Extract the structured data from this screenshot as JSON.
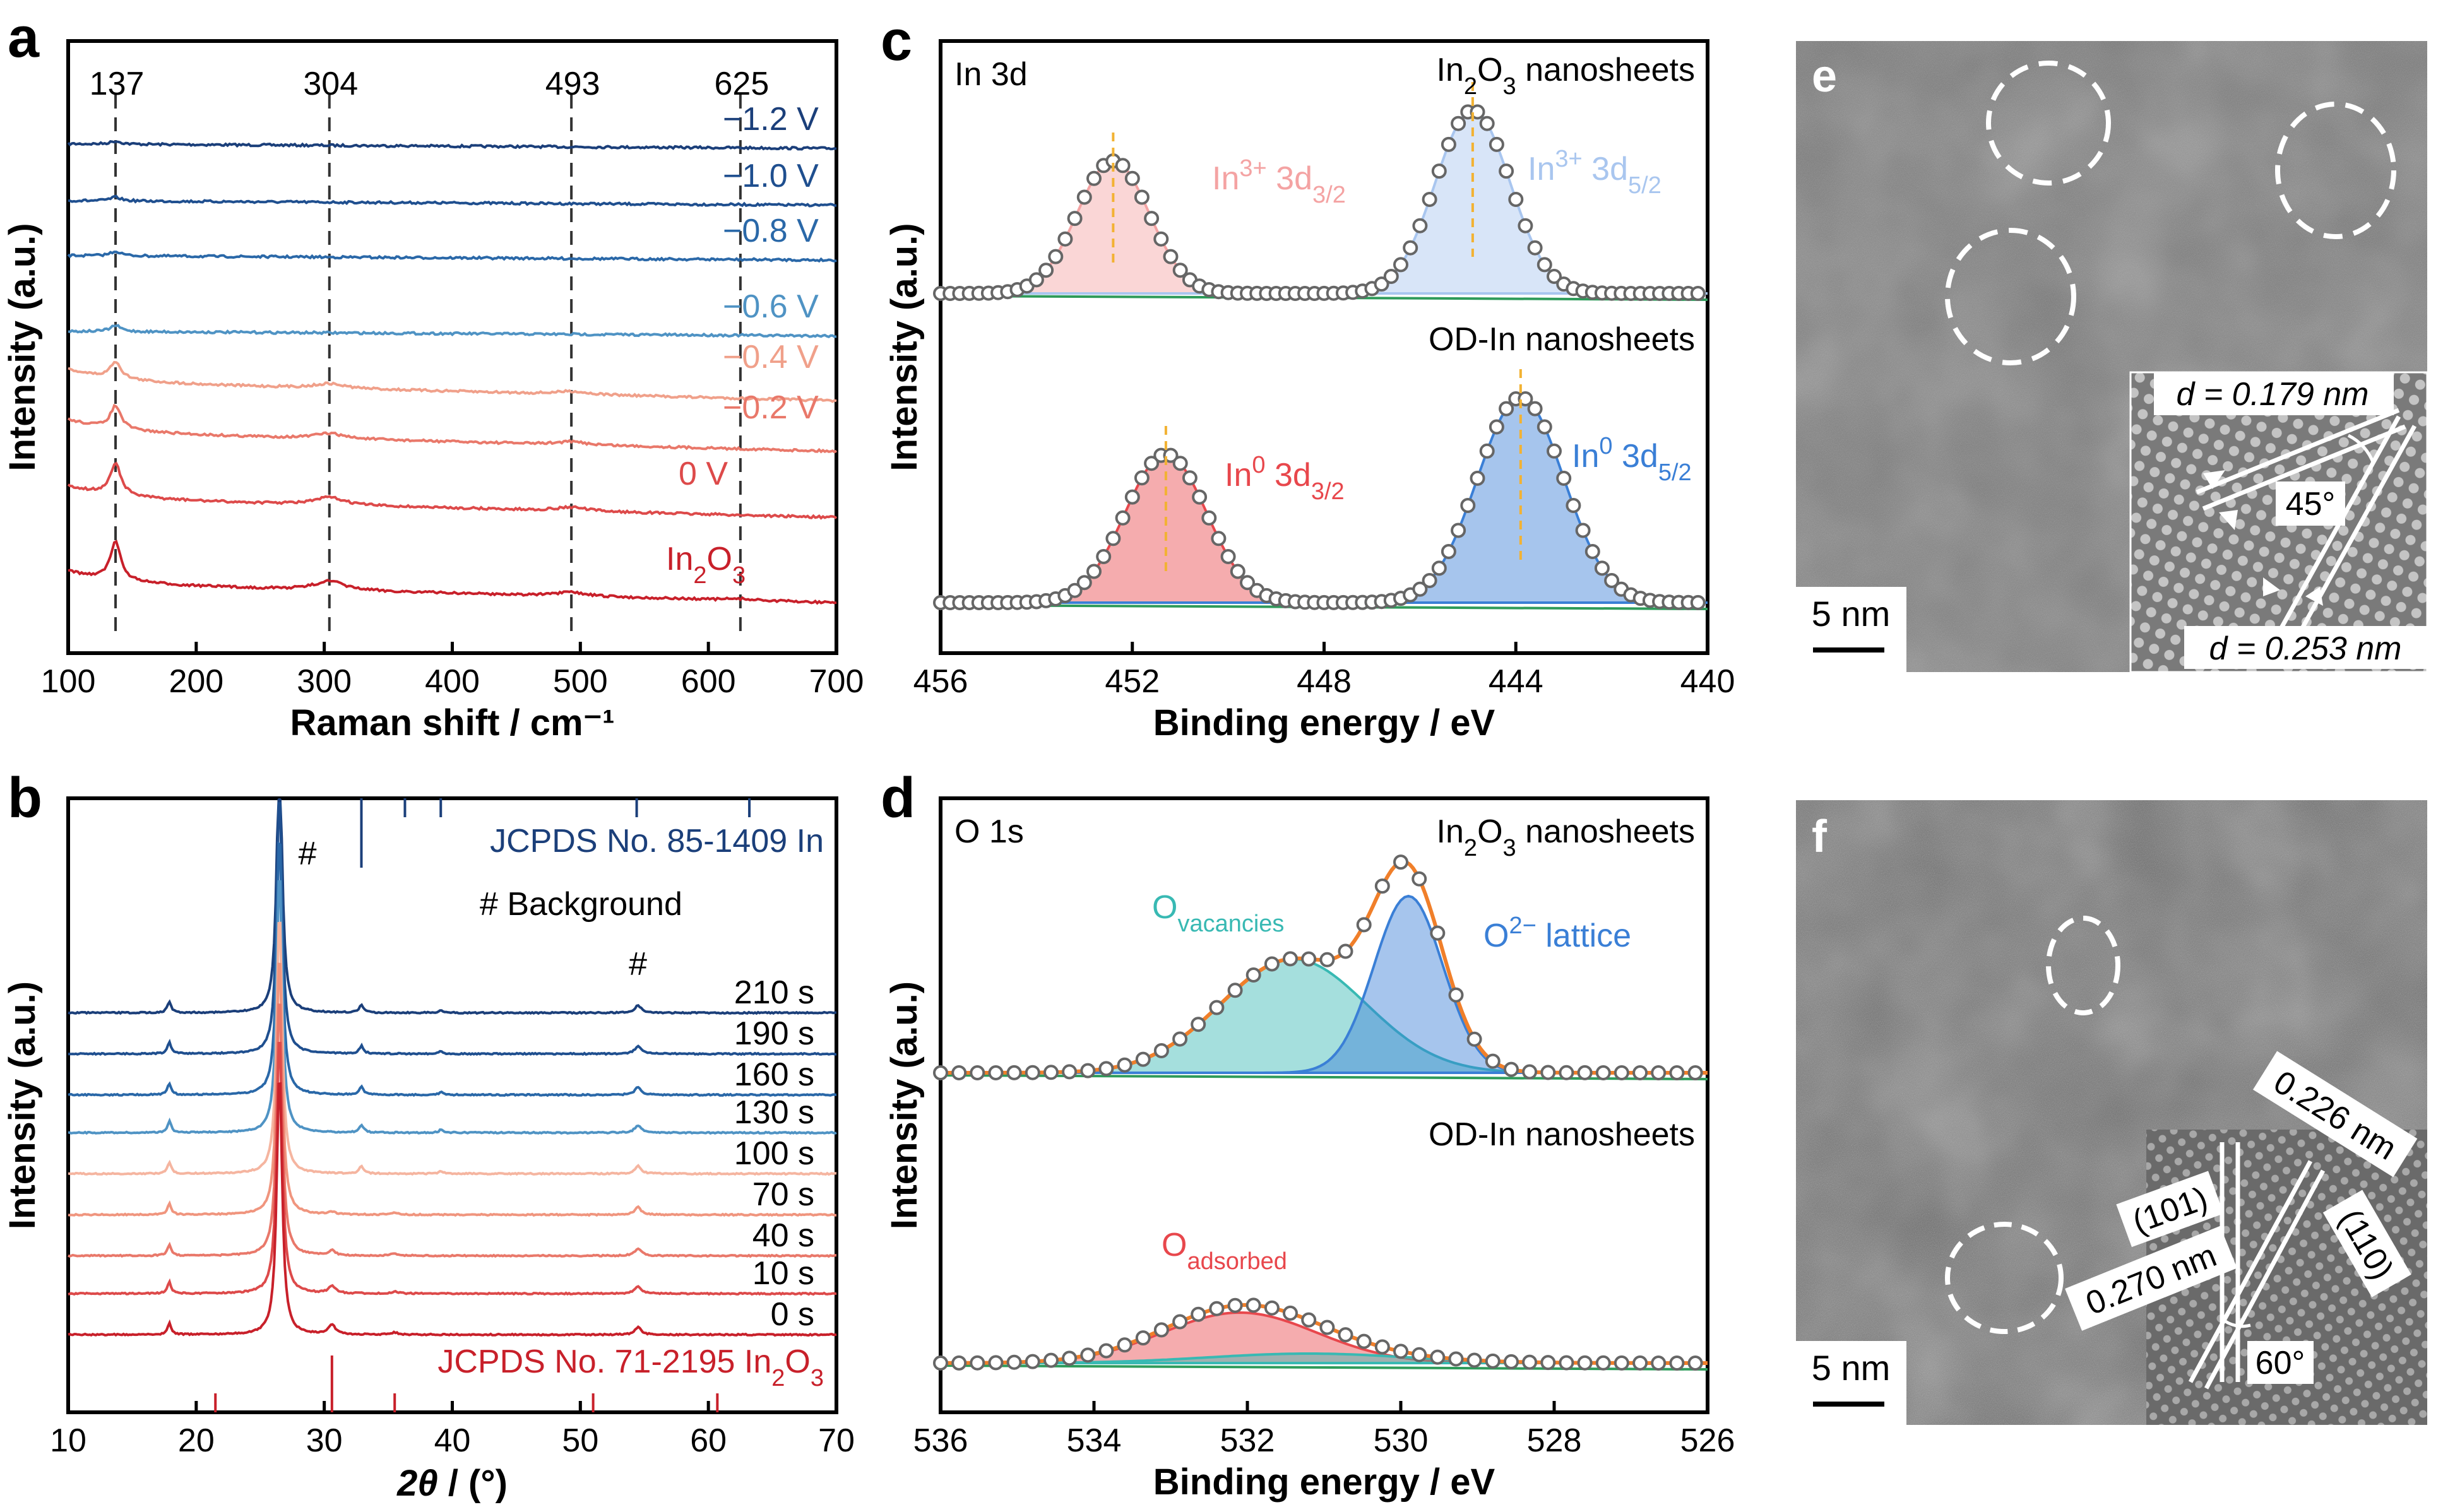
{
  "chart_data": [
    {
      "panel": "a",
      "type": "line",
      "xlabel": "Raman shift / cm⁻¹",
      "ylabel": "Intensity (a.u.)",
      "xlim": [
        100,
        700
      ],
      "xticks": [
        "100",
        "200",
        "300",
        "400",
        "500",
        "600",
        "700"
      ],
      "peak_markers": [
        {
          "label": "137",
          "x": 137
        },
        {
          "label": "304",
          "x": 304
        },
        {
          "label": "493",
          "x": 493
        },
        {
          "label": "625",
          "x": 625
        }
      ],
      "series": [
        {
          "name": "−1.2 V",
          "color": "#1b3f7a",
          "peaks": [
            [
              137,
              0.4
            ]
          ]
        },
        {
          "name": "−1.0 V",
          "color": "#1f4f8f",
          "peaks": [
            [
              137,
              0.5
            ]
          ]
        },
        {
          "name": "−0.8 V",
          "color": "#2a68a8",
          "peaks": [
            [
              137,
              0.6
            ]
          ]
        },
        {
          "name": "−0.6 V",
          "color": "#4f93c4",
          "peaks": [
            [
              137,
              0.8
            ]
          ]
        },
        {
          "name": "−0.4 V",
          "color": "#f0a08a",
          "peaks": [
            [
              137,
              2.2
            ],
            [
              304,
              0.6
            ],
            [
              493,
              0.4
            ]
          ]
        },
        {
          "name": "−0.2 V",
          "color": "#e9786a",
          "peaks": [
            [
              137,
              3.0
            ],
            [
              304,
              0.7
            ],
            [
              493,
              0.4
            ]
          ]
        },
        {
          "name": "0 V",
          "color": "#dd4a4a",
          "peaks": [
            [
              137,
              4.2
            ],
            [
              304,
              1.0
            ],
            [
              493,
              0.5
            ]
          ]
        },
        {
          "name": "In2O3",
          "color": "#c8202a",
          "peaks": [
            [
              137,
              5.0
            ],
            [
              304,
              1.2
            ],
            [
              493,
              0.5
            ],
            [
              625,
              0.2
            ]
          ]
        }
      ]
    },
    {
      "panel": "b",
      "type": "line",
      "xlabel": "2θ / (°)",
      "ylabel": "Intensity (a.u.)",
      "xlim": [
        10,
        70
      ],
      "xticks": [
        "10",
        "20",
        "30",
        "40",
        "50",
        "60",
        "70"
      ],
      "ref_top": "JCPDS No. 85-1409 In",
      "ref_bottom": "JCPDS No. 71-2195 In2O3",
      "background_note": "# Background",
      "background_marks": [
        {
          "label": "#",
          "x": 26.5
        },
        {
          "label": "#",
          "x": 54.5
        }
      ],
      "ref_lines_In": [
        32.9,
        36.3,
        39.1,
        54.4,
        63.2
      ],
      "ref_lines_In2O3": [
        21.5,
        30.6,
        35.5,
        51.0,
        60.7
      ],
      "series": [
        {
          "name": "210 s",
          "color": "#1b3f7a"
        },
        {
          "name": "190 s",
          "color": "#1f4f8f"
        },
        {
          "name": "160 s",
          "color": "#2a68a8"
        },
        {
          "name": "130 s",
          "color": "#4f93c4"
        },
        {
          "name": "100 s",
          "color": "#f5b5a0"
        },
        {
          "name": "70 s",
          "color": "#f0957e"
        },
        {
          "name": "40 s",
          "color": "#e9786a"
        },
        {
          "name": "10 s",
          "color": "#dd4a4a"
        },
        {
          "name": "0 s",
          "color": "#c8202a"
        }
      ]
    },
    {
      "panel": "c",
      "type": "line",
      "title_left": "In 3d",
      "xlabel": "Binding energy / eV",
      "ylabel": "Intensity (a.u.)",
      "xlim": [
        456,
        440
      ],
      "xticks": [
        "456",
        "452",
        "448",
        "444",
        "440"
      ],
      "groups": [
        {
          "name": "In2O3 nanosheets",
          "fits": [
            {
              "label": "In3+ 3d3/2",
              "center": 452.4,
              "color": "#f4a3a3"
            },
            {
              "label": "In3+ 3d5/2",
              "center": 444.9,
              "color": "#a9c6ef"
            }
          ]
        },
        {
          "name": "OD-In nanosheets",
          "fits": [
            {
              "label": "In0 3d3/2",
              "center": 451.3,
              "color": "#e8474c"
            },
            {
              "label": "In0 3d5/2",
              "center": 443.9,
              "color": "#3a7fd6"
            }
          ]
        }
      ]
    },
    {
      "panel": "d",
      "type": "line",
      "title_left": "O 1s",
      "xlabel": "Binding energy / eV",
      "ylabel": "Intensity (a.u.)",
      "xlim": [
        536,
        526
      ],
      "xticks": [
        "536",
        "534",
        "532",
        "530",
        "528",
        "526"
      ],
      "groups": [
        {
          "name": "In2O3 nanosheets",
          "fits": [
            {
              "label": "Ovacancies",
              "center": 531.4,
              "color": "#38b9b3"
            },
            {
              "label": "O2− lattice",
              "center": 529.9,
              "color": "#3a7fd6"
            }
          ]
        },
        {
          "name": "OD-In nanosheets",
          "fits": [
            {
              "label": "Oadsorbed",
              "center": 532.1,
              "color": "#e8474c"
            }
          ]
        }
      ]
    }
  ],
  "panels": {
    "a": {
      "letter": "a"
    },
    "b": {
      "letter": "b"
    },
    "c": {
      "letter": "c",
      "g1": "In₂O₃ nanosheets",
      "g2": "OD-In nanosheets",
      "l1": "In³⁺ 3d₃/₂",
      "l2": "In³⁺ 3d₅/₂",
      "l3": "In⁰ 3d₃/₂",
      "l4": "In⁰ 3d₅/₂",
      "title": "In 3d"
    },
    "d": {
      "letter": "d",
      "g1": "In₂O₃ nanosheets",
      "g2": "OD-In nanosheets",
      "l1": "O",
      "l1sub": "vacancies",
      "l2": "O²⁻ lattice",
      "l3": "O",
      "l3sub": "adsorbed",
      "title": "O 1s"
    },
    "e": {
      "letter": "e",
      "scale": "5 nm",
      "d1": "d = 0.179 nm",
      "d2": "d = 0.253 nm",
      "angle": "45°"
    },
    "f": {
      "letter": "f",
      "scale": "5 nm",
      "d1": "0.226 nm",
      "d2": "0.270 nm",
      "hkl1": "(101)",
      "hkl2": "(110)",
      "angle": "60°"
    }
  },
  "colors": {
    "axis": "#000000",
    "dash": "#333333",
    "orange_dash": "#f2b233",
    "baseline": "#2e9b5a",
    "fit_envelope": "#f07f2a"
  }
}
